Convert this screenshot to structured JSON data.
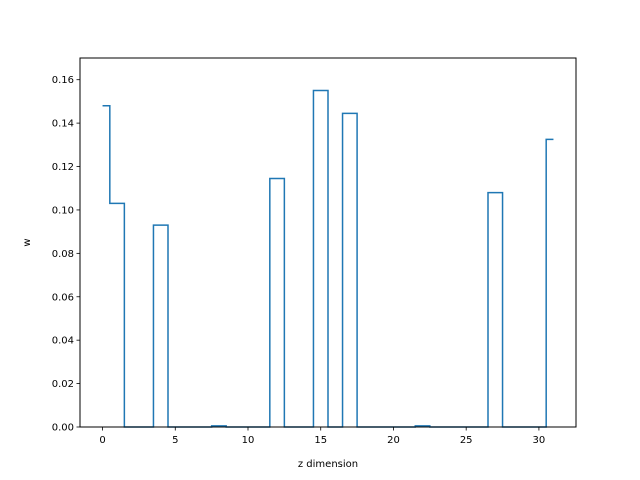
{
  "chart_data": {
    "type": "line",
    "drawstyle": "steps-mid",
    "xlabel": "z dimension",
    "ylabel": "w",
    "xlim": [
      -1.55,
      32.55
    ],
    "ylim": [
      0,
      0.17
    ],
    "xticks": [
      0,
      5,
      10,
      15,
      20,
      25,
      30
    ],
    "yticks": [
      0.0,
      0.02,
      0.04,
      0.06,
      0.08,
      0.1,
      0.12,
      0.14,
      0.16
    ],
    "ytick_labels": [
      "0.00",
      "0.02",
      "0.04",
      "0.06",
      "0.08",
      "0.10",
      "0.12",
      "0.14",
      "0.16"
    ],
    "grid": false,
    "series": [
      {
        "color": "#1f77b4",
        "x": [
          0,
          1,
          2,
          3,
          4,
          5,
          6,
          7,
          8,
          9,
          10,
          11,
          12,
          13,
          14,
          15,
          16,
          17,
          18,
          19,
          20,
          21,
          22,
          23,
          24,
          25,
          26,
          27,
          28,
          29,
          30,
          31
        ],
        "values": [
          0.148,
          0.103,
          0,
          0,
          0.093,
          0,
          0,
          0,
          0.0005,
          0,
          0,
          0,
          0.1145,
          0,
          0,
          0.155,
          0,
          0.1445,
          0,
          0,
          0,
          0,
          0.0005,
          0,
          0,
          0,
          0,
          0.108,
          0,
          0,
          0,
          0.1325
        ]
      }
    ]
  }
}
